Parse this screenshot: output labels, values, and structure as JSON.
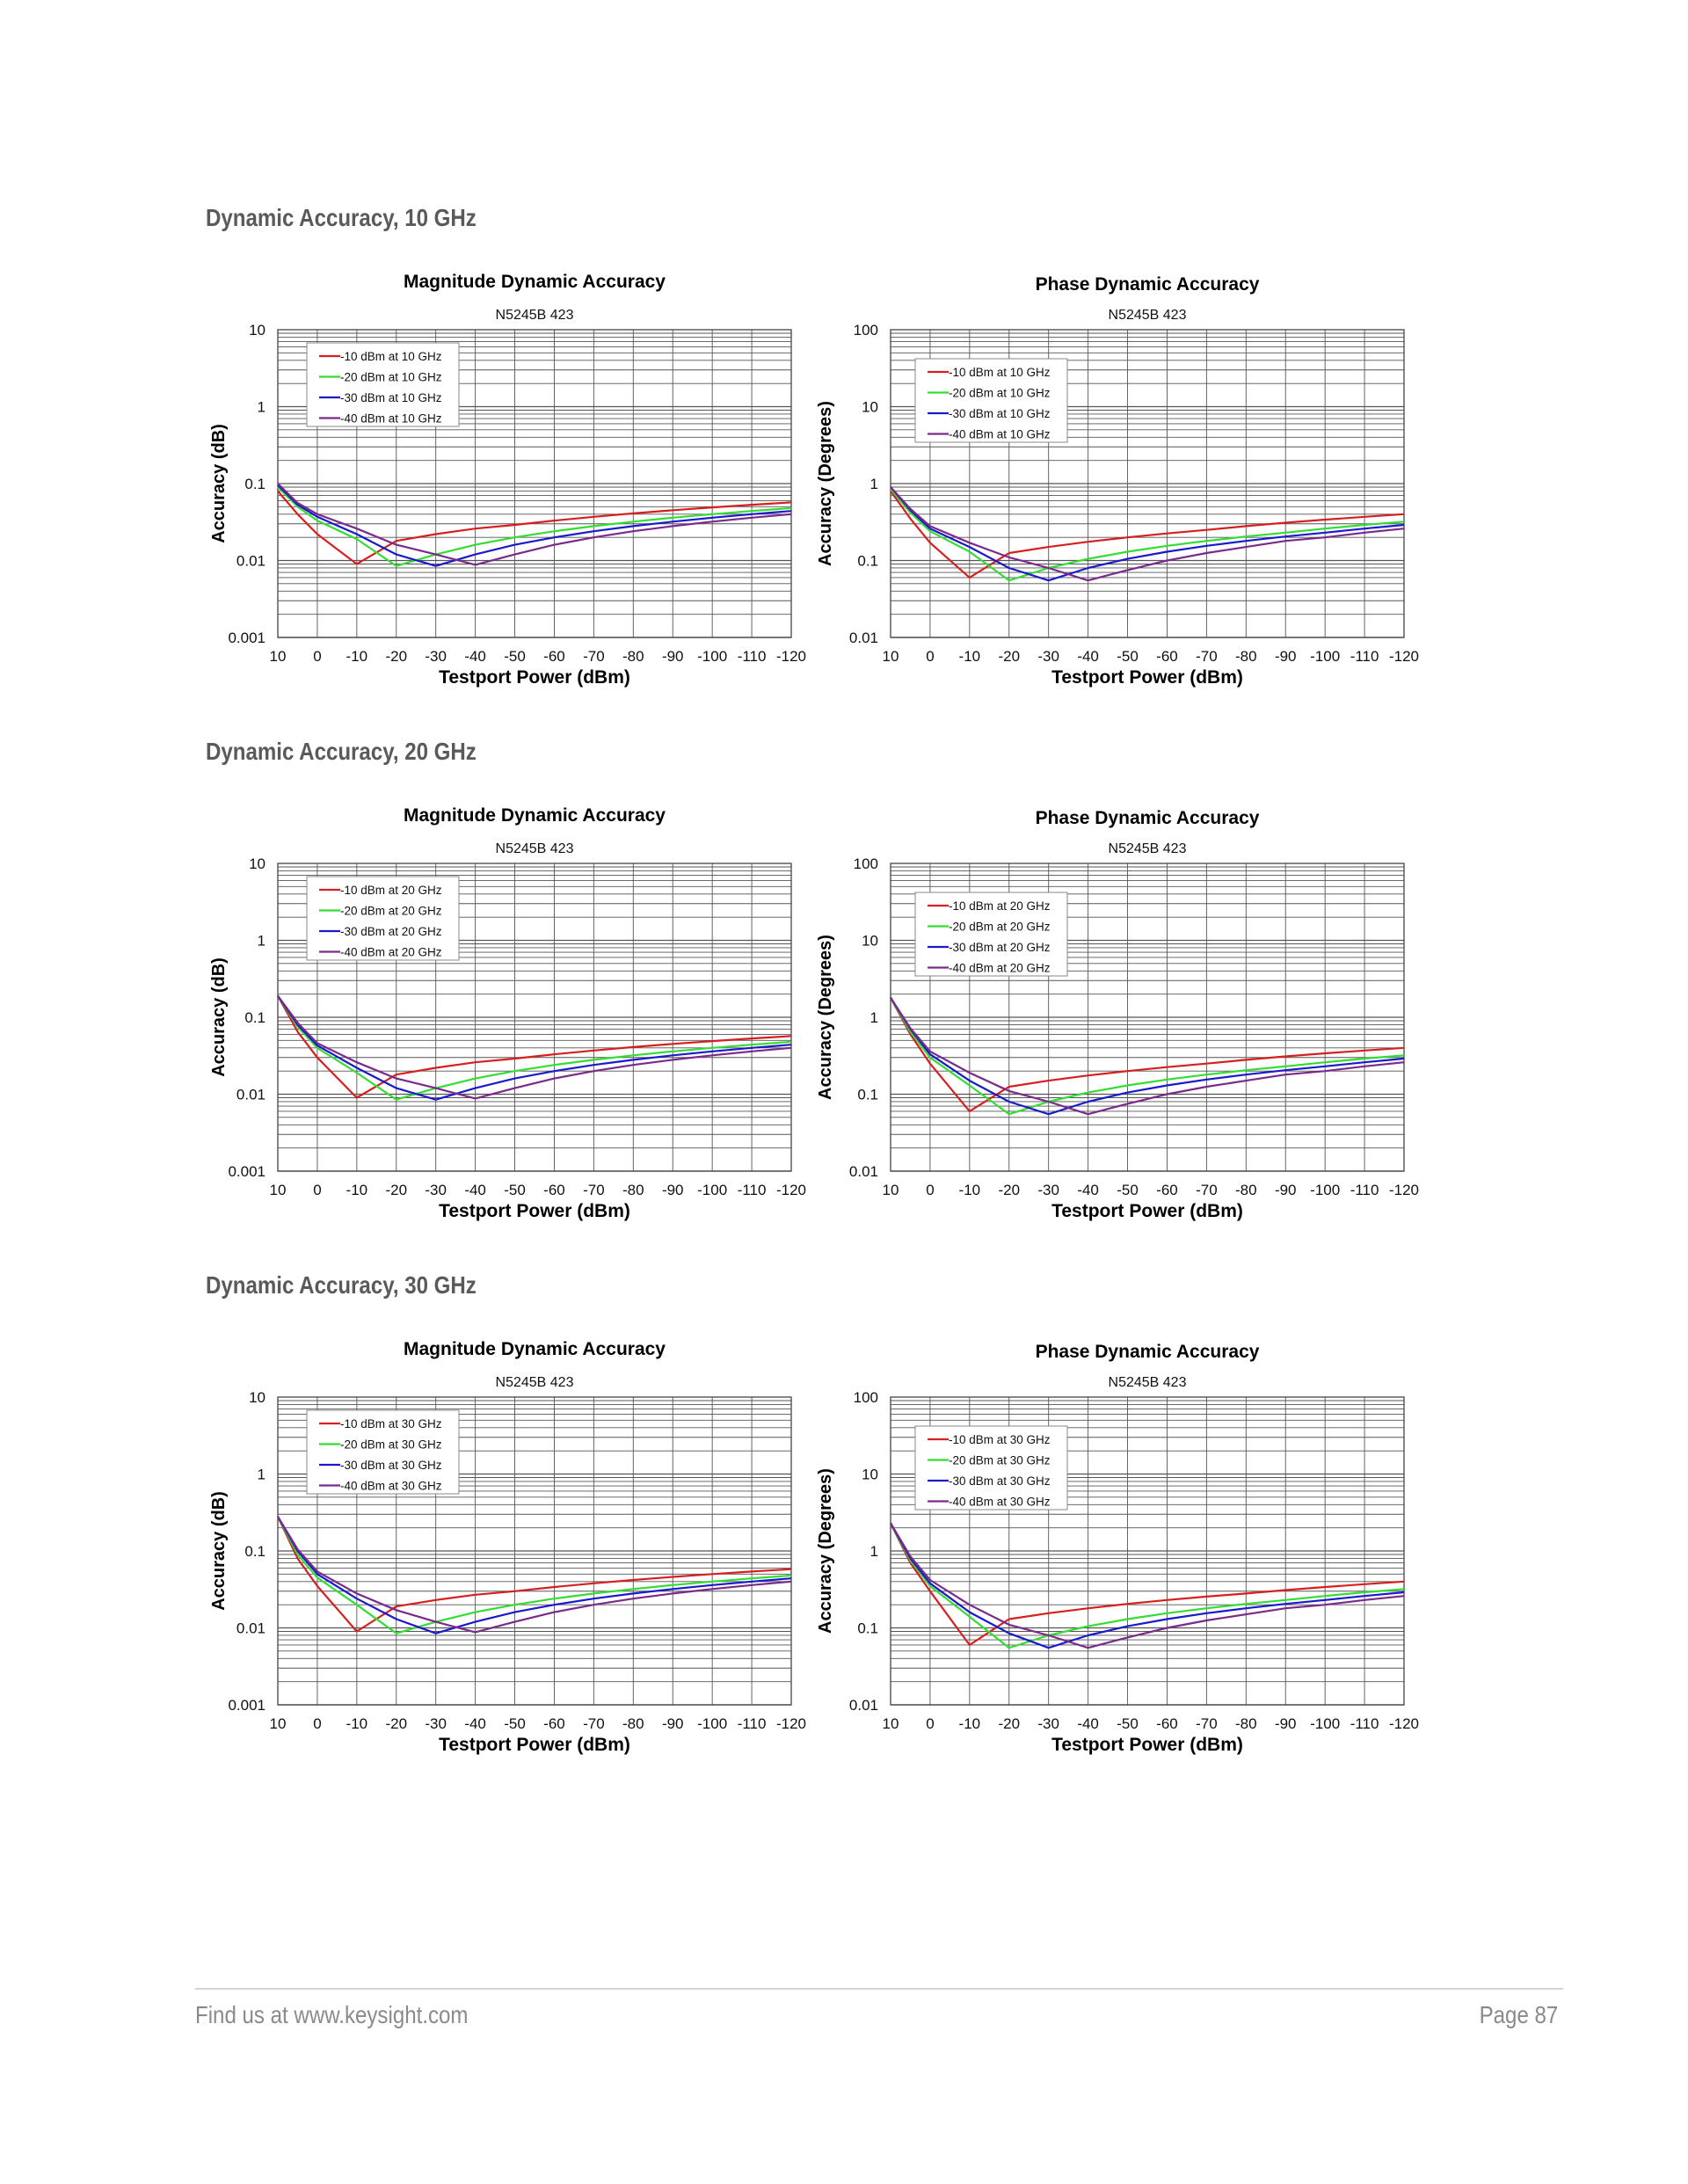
{
  "sections": [
    {
      "heading": "Dynamic Accuracy, 10 GHz"
    },
    {
      "heading": "Dynamic Accuracy, 20 GHz"
    },
    {
      "heading": "Dynamic Accuracy, 30 GHz"
    }
  ],
  "footer": {
    "left": "Find us at www.keysight.com",
    "right": "Page 87"
  },
  "chart_data": [
    {
      "type": "line",
      "title": "Magnitude Dynamic Accuracy",
      "subtitle": "N5245B 423",
      "xlabel": "Testport Power (dBm)",
      "ylabel": "Accuracy (dB)",
      "xlim": [
        10,
        -120
      ],
      "ylim": [
        0.001,
        10
      ],
      "yscale": "log",
      "grid": true,
      "legend": "top-left",
      "xticks": [
        "10",
        "0",
        "-10",
        "-20",
        "-30",
        "-40",
        "-50",
        "-60",
        "-70",
        "-80",
        "-90",
        "-100",
        "-110",
        "-120"
      ],
      "yticks": [
        "0.001",
        "0.01",
        "0.1",
        "1",
        "10"
      ],
      "x": [
        10,
        5,
        0,
        -10,
        -20,
        -30,
        -40,
        -50,
        -60,
        -70,
        -80,
        -90,
        -100,
        -110,
        -120
      ],
      "series": [
        {
          "name": "-10 dBm at 10 GHz",
          "color": "#d62020",
          "values": [
            0.08,
            0.04,
            0.022,
            0.009,
            0.018,
            0.022,
            0.026,
            0.029,
            0.033,
            0.037,
            0.041,
            0.045,
            0.049,
            0.053,
            0.057
          ]
        },
        {
          "name": "-20 dBm at 10 GHz",
          "color": "#33dd33",
          "values": [
            0.09,
            0.05,
            0.033,
            0.019,
            0.0085,
            0.012,
            0.016,
            0.02,
            0.024,
            0.028,
            0.032,
            0.036,
            0.04,
            0.044,
            0.048
          ]
        },
        {
          "name": "-30 dBm at 10 GHz",
          "color": "#1a1acc",
          "values": [
            0.095,
            0.053,
            0.037,
            0.022,
            0.012,
            0.0085,
            0.012,
            0.016,
            0.02,
            0.024,
            0.028,
            0.032,
            0.036,
            0.04,
            0.044
          ]
        },
        {
          "name": "-40 dBm at 10 GHz",
          "color": "#7a2a8a",
          "values": [
            0.1,
            0.056,
            0.04,
            0.026,
            0.016,
            0.012,
            0.0088,
            0.012,
            0.016,
            0.02,
            0.024,
            0.028,
            0.032,
            0.036,
            0.04
          ]
        }
      ]
    },
    {
      "type": "line",
      "title": "Phase Dynamic Accuracy",
      "subtitle": "N5245B 423",
      "xlabel": "Testport Power (dBm)",
      "ylabel": "Accuracy (Degrees)",
      "xlim": [
        10,
        -120
      ],
      "ylim": [
        0.01,
        100
      ],
      "yscale": "log",
      "grid": true,
      "legend": "top-left",
      "xticks": [
        "10",
        "0",
        "-10",
        "-20",
        "-30",
        "-40",
        "-50",
        "-60",
        "-70",
        "-80",
        "-90",
        "-100",
        "-110",
        "-120"
      ],
      "yticks": [
        "0.01",
        "0.1",
        "1",
        "10",
        "100"
      ],
      "x": [
        10,
        5,
        0,
        -10,
        -20,
        -30,
        -40,
        -50,
        -60,
        -70,
        -80,
        -90,
        -100,
        -110,
        -120
      ],
      "series": [
        {
          "name": "-10 dBm at 10 GHz",
          "color": "#d62020",
          "values": [
            0.8,
            0.35,
            0.17,
            0.06,
            0.125,
            0.15,
            0.175,
            0.2,
            0.225,
            0.25,
            0.28,
            0.31,
            0.34,
            0.37,
            0.4
          ]
        },
        {
          "name": "-20 dBm at 10 GHz",
          "color": "#33dd33",
          "values": [
            0.85,
            0.42,
            0.24,
            0.13,
            0.055,
            0.08,
            0.105,
            0.13,
            0.155,
            0.18,
            0.205,
            0.23,
            0.26,
            0.29,
            0.32
          ]
        },
        {
          "name": "-30 dBm at 10 GHz",
          "color": "#1a1acc",
          "values": [
            0.9,
            0.45,
            0.26,
            0.15,
            0.08,
            0.055,
            0.08,
            0.105,
            0.13,
            0.155,
            0.18,
            0.205,
            0.23,
            0.26,
            0.29
          ]
        },
        {
          "name": "-40 dBm at 10 GHz",
          "color": "#7a2a8a",
          "values": [
            0.9,
            0.47,
            0.28,
            0.17,
            0.11,
            0.08,
            0.055,
            0.075,
            0.1,
            0.125,
            0.15,
            0.18,
            0.2,
            0.23,
            0.26
          ]
        }
      ]
    },
    {
      "type": "line",
      "title": "Magnitude Dynamic Accuracy",
      "subtitle": "N5245B 423",
      "xlabel": "Testport Power (dBm)",
      "ylabel": "Accuracy (dB)",
      "xlim": [
        10,
        -120
      ],
      "ylim": [
        0.001,
        10
      ],
      "yscale": "log",
      "grid": true,
      "legend": "top-left",
      "xticks": [
        "10",
        "0",
        "-10",
        "-20",
        "-30",
        "-40",
        "-50",
        "-60",
        "-70",
        "-80",
        "-90",
        "-100",
        "-110",
        "-120"
      ],
      "yticks": [
        "0.001",
        "0.01",
        "0.1",
        "1",
        "10"
      ],
      "x": [
        10,
        5,
        0,
        -10,
        -20,
        -30,
        -40,
        -50,
        -60,
        -70,
        -80,
        -90,
        -100,
        -110,
        -120
      ],
      "series": [
        {
          "name": "-10 dBm at 20 GHz",
          "color": "#d62020",
          "values": [
            0.19,
            0.065,
            0.03,
            0.009,
            0.018,
            0.022,
            0.026,
            0.029,
            0.033,
            0.037,
            0.041,
            0.045,
            0.049,
            0.053,
            0.057
          ]
        },
        {
          "name": "-20 dBm at 20 GHz",
          "color": "#33dd33",
          "values": [
            0.19,
            0.075,
            0.04,
            0.019,
            0.0085,
            0.012,
            0.016,
            0.02,
            0.024,
            0.028,
            0.032,
            0.036,
            0.04,
            0.044,
            0.048
          ]
        },
        {
          "name": "-30 dBm at 20 GHz",
          "color": "#1a1acc",
          "values": [
            0.19,
            0.08,
            0.043,
            0.022,
            0.012,
            0.0085,
            0.012,
            0.016,
            0.02,
            0.024,
            0.028,
            0.032,
            0.036,
            0.04,
            0.044
          ]
        },
        {
          "name": "-40 dBm at 20 GHz",
          "color": "#7a2a8a",
          "values": [
            0.19,
            0.085,
            0.046,
            0.026,
            0.016,
            0.012,
            0.0088,
            0.012,
            0.016,
            0.02,
            0.024,
            0.028,
            0.032,
            0.036,
            0.04
          ]
        }
      ]
    },
    {
      "type": "line",
      "title": "Phase Dynamic Accuracy",
      "subtitle": "N5245B 423",
      "xlabel": "Testport Power (dBm)",
      "ylabel": "Accuracy (Degrees)",
      "xlim": [
        10,
        -120
      ],
      "ylim": [
        0.01,
        100
      ],
      "yscale": "log",
      "grid": true,
      "legend": "top-left",
      "xticks": [
        "10",
        "0",
        "-10",
        "-20",
        "-30",
        "-40",
        "-50",
        "-60",
        "-70",
        "-80",
        "-90",
        "-100",
        "-110",
        "-120"
      ],
      "yticks": [
        "0.01",
        "0.1",
        "1",
        "10",
        "100"
      ],
      "x": [
        10,
        5,
        0,
        -10,
        -20,
        -30,
        -40,
        -50,
        -60,
        -70,
        -80,
        -90,
        -100,
        -110,
        -120
      ],
      "series": [
        {
          "name": "-10 dBm at 20 GHz",
          "color": "#d62020",
          "values": [
            1.8,
            0.6,
            0.25,
            0.06,
            0.125,
            0.15,
            0.175,
            0.2,
            0.225,
            0.25,
            0.28,
            0.31,
            0.34,
            0.37,
            0.4
          ]
        },
        {
          "name": "-20 dBm at 20 GHz",
          "color": "#33dd33",
          "values": [
            1.8,
            0.65,
            0.3,
            0.13,
            0.055,
            0.08,
            0.105,
            0.13,
            0.155,
            0.18,
            0.205,
            0.23,
            0.26,
            0.29,
            0.32
          ]
        },
        {
          "name": "-30 dBm at 20 GHz",
          "color": "#1a1acc",
          "values": [
            1.8,
            0.7,
            0.33,
            0.15,
            0.08,
            0.055,
            0.08,
            0.105,
            0.13,
            0.155,
            0.18,
            0.205,
            0.23,
            0.26,
            0.29
          ]
        },
        {
          "name": "-40 dBm at 20 GHz",
          "color": "#7a2a8a",
          "values": [
            1.8,
            0.72,
            0.36,
            0.19,
            0.11,
            0.08,
            0.055,
            0.075,
            0.1,
            0.125,
            0.15,
            0.18,
            0.2,
            0.23,
            0.26
          ]
        }
      ]
    },
    {
      "type": "line",
      "title": "Magnitude Dynamic Accuracy",
      "subtitle": "N5245B 423",
      "xlabel": "Testport Power (dBm)",
      "ylabel": "Accuracy (dB)",
      "xlim": [
        10,
        -120
      ],
      "ylim": [
        0.001,
        10
      ],
      "yscale": "log",
      "grid": true,
      "legend": "top-left",
      "xticks": [
        "10",
        "0",
        "-10",
        "-20",
        "-30",
        "-40",
        "-50",
        "-60",
        "-70",
        "-80",
        "-90",
        "-100",
        "-110",
        "-120"
      ],
      "yticks": [
        "0.001",
        "0.01",
        "0.1",
        "1",
        "10"
      ],
      "x": [
        10,
        5,
        0,
        -10,
        -20,
        -30,
        -40,
        -50,
        -60,
        -70,
        -80,
        -90,
        -100,
        -110,
        -120
      ],
      "series": [
        {
          "name": "-10 dBm at 30 GHz",
          "color": "#d62020",
          "values": [
            0.28,
            0.08,
            0.035,
            0.009,
            0.019,
            0.023,
            0.027,
            0.03,
            0.034,
            0.038,
            0.042,
            0.046,
            0.05,
            0.054,
            0.058
          ]
        },
        {
          "name": "-20 dBm at 30 GHz",
          "color": "#33dd33",
          "values": [
            0.28,
            0.09,
            0.045,
            0.02,
            0.0085,
            0.012,
            0.016,
            0.02,
            0.024,
            0.028,
            0.032,
            0.036,
            0.04,
            0.044,
            0.048
          ]
        },
        {
          "name": "-30 dBm at 30 GHz",
          "color": "#1a1acc",
          "values": [
            0.28,
            0.1,
            0.05,
            0.024,
            0.013,
            0.0085,
            0.012,
            0.016,
            0.02,
            0.024,
            0.028,
            0.032,
            0.036,
            0.04,
            0.044
          ]
        },
        {
          "name": "-40 dBm at 30 GHz",
          "color": "#7a2a8a",
          "values": [
            0.28,
            0.105,
            0.054,
            0.028,
            0.017,
            0.012,
            0.0088,
            0.012,
            0.016,
            0.02,
            0.024,
            0.028,
            0.032,
            0.036,
            0.04
          ]
        }
      ]
    },
    {
      "type": "line",
      "title": "Phase Dynamic Accuracy",
      "subtitle": "N5245B 423",
      "xlabel": "Testport Power (dBm)",
      "ylabel": "Accuracy (Degrees)",
      "xlim": [
        10,
        -120
      ],
      "ylim": [
        0.01,
        100
      ],
      "yscale": "log",
      "grid": true,
      "legend": "top-left",
      "xticks": [
        "10",
        "0",
        "-10",
        "-20",
        "-30",
        "-40",
        "-50",
        "-60",
        "-70",
        "-80",
        "-90",
        "-100",
        "-110",
        "-120"
      ],
      "yticks": [
        "0.01",
        "0.1",
        "1",
        "10",
        "100"
      ],
      "x": [
        10,
        5,
        0,
        -10,
        -20,
        -30,
        -40,
        -50,
        -60,
        -70,
        -80,
        -90,
        -100,
        -110,
        -120
      ],
      "series": [
        {
          "name": "-10 dBm at 30 GHz",
          "color": "#d62020",
          "values": [
            2.3,
            0.7,
            0.3,
            0.06,
            0.13,
            0.155,
            0.18,
            0.205,
            0.23,
            0.255,
            0.28,
            0.31,
            0.34,
            0.37,
            0.4
          ]
        },
        {
          "name": "-20 dBm at 30 GHz",
          "color": "#33dd33",
          "values": [
            2.3,
            0.75,
            0.35,
            0.14,
            0.055,
            0.08,
            0.105,
            0.13,
            0.155,
            0.18,
            0.205,
            0.23,
            0.26,
            0.29,
            0.32
          ]
        },
        {
          "name": "-30 dBm at 30 GHz",
          "color": "#1a1acc",
          "values": [
            2.3,
            0.8,
            0.38,
            0.16,
            0.085,
            0.055,
            0.08,
            0.105,
            0.13,
            0.155,
            0.18,
            0.205,
            0.23,
            0.26,
            0.29
          ]
        },
        {
          "name": "-40 dBm at 30 GHz",
          "color": "#7a2a8a",
          "values": [
            2.3,
            0.85,
            0.42,
            0.2,
            0.11,
            0.08,
            0.055,
            0.075,
            0.1,
            0.125,
            0.15,
            0.18,
            0.2,
            0.23,
            0.26
          ]
        }
      ]
    }
  ]
}
